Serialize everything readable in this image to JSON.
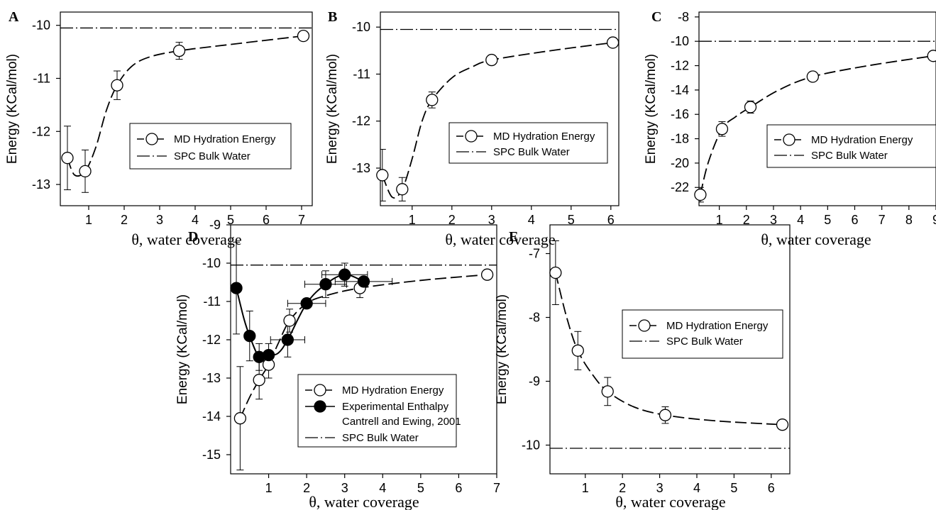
{
  "chart_data": [
    {
      "panel": "A",
      "type": "scatter",
      "xlabel": "θ, water coverage",
      "ylabel": "Energy (KCal/mol)",
      "xlim": [
        0.2,
        7.3
      ],
      "ylim": [
        -13.4,
        -9.75
      ],
      "xticks": [
        1,
        2,
        3,
        4,
        5,
        6,
        7
      ],
      "yticks": [
        -13,
        -12,
        -11,
        -10
      ],
      "bulk": -10.05,
      "series": [
        {
          "name": "MD Hydration Energy",
          "marker": "open",
          "x": [
            0.4,
            0.9,
            1.8,
            3.55,
            7.05
          ],
          "y": [
            -12.5,
            -12.75,
            -11.13,
            -10.48,
            -10.2
          ],
          "yerr": [
            0.6,
            0.4,
            0.27,
            0.16,
            0.0
          ],
          "curve": [
            [
              0.4,
              -12.5
            ],
            [
              0.6,
              -12.82
            ],
            [
              0.9,
              -12.75
            ],
            [
              1.2,
              -12.3
            ],
            [
              1.5,
              -11.6
            ],
            [
              1.8,
              -11.13
            ],
            [
              2.2,
              -10.78
            ],
            [
              2.7,
              -10.6
            ],
            [
              3.55,
              -10.48
            ],
            [
              5.0,
              -10.36
            ],
            [
              7.05,
              -10.2
            ]
          ]
        }
      ],
      "legend": {
        "position": "right",
        "entries": [
          "MD Hydration Energy",
          "SPC Bulk Water"
        ]
      }
    },
    {
      "panel": "B",
      "type": "scatter",
      "xlabel": "θ, water coverage",
      "ylabel": "Energy (KCal/mol)",
      "xlim": [
        0.2,
        6.2
      ],
      "ylim": [
        -13.8,
        -9.68
      ],
      "xticks": [
        1,
        2,
        3,
        4,
        5,
        6
      ],
      "yticks": [
        -13,
        -12,
        -11,
        -10
      ],
      "bulk": -10.05,
      "series": [
        {
          "name": "MD Hydration Energy",
          "marker": "open",
          "x": [
            0.25,
            0.75,
            1.5,
            3.0,
            6.05
          ],
          "y": [
            -13.15,
            -13.45,
            -11.55,
            -10.7,
            -10.33
          ],
          "yerr": [
            0.55,
            0.25,
            0.17,
            0.0,
            0.0
          ],
          "curve": [
            [
              0.25,
              -13.15
            ],
            [
              0.5,
              -13.62
            ],
            [
              0.75,
              -13.45
            ],
            [
              1.0,
              -12.8
            ],
            [
              1.25,
              -12.0
            ],
            [
              1.5,
              -11.55
            ],
            [
              2.0,
              -11.08
            ],
            [
              2.5,
              -10.85
            ],
            [
              3.0,
              -10.7
            ],
            [
              4.5,
              -10.5
            ],
            [
              6.05,
              -10.33
            ]
          ]
        }
      ],
      "legend": {
        "position": "right",
        "entries": [
          "MD Hydration Energy",
          "SPC Bulk Water"
        ]
      }
    },
    {
      "panel": "C",
      "type": "scatter",
      "xlabel": "θ, water coverage",
      "ylabel": "Energy (KCal/mol)",
      "xlim": [
        0.25,
        9.0
      ],
      "ylim": [
        -23.5,
        -7.6
      ],
      "xticks": [
        1,
        2,
        3,
        4,
        5,
        6,
        7,
        8,
        9
      ],
      "yticks": [
        -22,
        -20,
        -18,
        -16,
        -14,
        -12,
        -10,
        -8
      ],
      "bulk": -10.0,
      "series": [
        {
          "name": "MD Hydration Energy",
          "marker": "open",
          "x": [
            0.3,
            1.1,
            2.15,
            4.45,
            8.9
          ],
          "y": [
            -22.6,
            -17.2,
            -15.4,
            -12.9,
            -11.2
          ],
          "yerr": [
            0.6,
            0.6,
            0.5,
            0.0,
            0.0
          ],
          "curve": [
            [
              0.3,
              -22.6
            ],
            [
              0.6,
              -19.9
            ],
            [
              1.1,
              -17.2
            ],
            [
              1.6,
              -16.2
            ],
            [
              2.15,
              -15.4
            ],
            [
              3.2,
              -14.0
            ],
            [
              4.45,
              -12.9
            ],
            [
              6.5,
              -12.0
            ],
            [
              8.9,
              -11.2
            ]
          ]
        }
      ],
      "legend": {
        "position": "right",
        "entries": [
          "MD Hydration Energy",
          "SPC Bulk Water"
        ]
      }
    },
    {
      "panel": "D",
      "type": "scatter",
      "xlabel": "θ, water coverage",
      "ylabel": "Energy (KCal/mol)",
      "xlim": [
        0.0,
        7.0
      ],
      "ylim": [
        -15.5,
        -9.0
      ],
      "xticks": [
        1,
        2,
        3,
        4,
        5,
        6,
        7
      ],
      "yticks": [
        -15,
        -14,
        -13,
        -12,
        -11,
        -10,
        -9
      ],
      "bulk": -10.05,
      "series": [
        {
          "name": "MD Hydration Energy",
          "marker": "open",
          "x": [
            0.25,
            0.75,
            1.0,
            1.55,
            3.4,
            6.75
          ],
          "y": [
            -14.05,
            -13.05,
            -12.65,
            -11.5,
            -10.65,
            -10.3
          ],
          "yerr": [
            1.35,
            0.5,
            0.35,
            0.3,
            0.25,
            0.0
          ],
          "curve": [
            [
              0.25,
              -14.05
            ],
            [
              0.5,
              -13.5
            ],
            [
              0.75,
              -13.05
            ],
            [
              1.0,
              -12.65
            ],
            [
              1.25,
              -12.1
            ],
            [
              1.55,
              -11.5
            ],
            [
              2.0,
              -11.05
            ],
            [
              2.5,
              -10.85
            ],
            [
              3.4,
              -10.65
            ],
            [
              5.0,
              -10.45
            ],
            [
              6.75,
              -10.3
            ]
          ]
        },
        {
          "name": "Experimental Enthalpy",
          "marker": "filled",
          "x": [
            0.15,
            0.5,
            0.75,
            1.0,
            1.5,
            2.0,
            2.5,
            3.0,
            3.5
          ],
          "y": [
            -10.65,
            -11.9,
            -12.45,
            -12.4,
            -12.0,
            -11.05,
            -10.55,
            -10.3,
            -10.48
          ],
          "yerr": [
            1.2,
            0.65,
            0.35,
            0.3,
            0.45,
            0.0,
            0.35,
            0.3,
            0.0
          ],
          "xerr": [
            0.0,
            0.0,
            0.0,
            0.0,
            0.45,
            0.5,
            0.55,
            0.6,
            0.75
          ],
          "curve": [
            [
              0.15,
              -10.65
            ],
            [
              0.35,
              -11.45
            ],
            [
              0.5,
              -11.9
            ],
            [
              0.75,
              -12.45
            ],
            [
              1.0,
              -12.4
            ],
            [
              1.25,
              -12.35
            ],
            [
              1.5,
              -12.0
            ],
            [
              2.0,
              -11.05
            ],
            [
              2.5,
              -10.55
            ],
            [
              3.0,
              -10.3
            ],
            [
              3.5,
              -10.48
            ]
          ]
        }
      ],
      "legend": {
        "position": "center-right",
        "entries": [
          "MD Hydration Energy",
          "Experimental Enthalpy",
          "Cantrell and Ewing, 2001",
          "SPC Bulk Water"
        ]
      }
    },
    {
      "panel": "E",
      "type": "scatter",
      "xlabel": "θ, water coverage",
      "ylabel": "Energy (KCal/mol)",
      "xlim": [
        0.05,
        6.5
      ],
      "ylim": [
        -10.45,
        -6.55
      ],
      "xticks": [
        1,
        2,
        3,
        4,
        5,
        6
      ],
      "yticks": [
        -10,
        -9,
        -8,
        -7
      ],
      "bulk": -10.05,
      "series": [
        {
          "name": "MD Hydration Energy",
          "marker": "open",
          "x": [
            0.2,
            0.8,
            1.6,
            3.15,
            6.3
          ],
          "y": [
            -7.3,
            -8.52,
            -9.16,
            -9.53,
            -9.68
          ],
          "yerr": [
            0.5,
            0.3,
            0.22,
            0.13,
            0.0
          ],
          "curve": [
            [
              0.2,
              -7.3
            ],
            [
              0.5,
              -8.0
            ],
            [
              0.8,
              -8.52
            ],
            [
              1.2,
              -8.9
            ],
            [
              1.6,
              -9.16
            ],
            [
              2.3,
              -9.4
            ],
            [
              3.15,
              -9.53
            ],
            [
              4.5,
              -9.62
            ],
            [
              6.3,
              -9.68
            ]
          ]
        }
      ],
      "legend": {
        "position": "top-right",
        "entries": [
          "MD Hydration Energy",
          "SPC Bulk Water"
        ]
      }
    }
  ]
}
